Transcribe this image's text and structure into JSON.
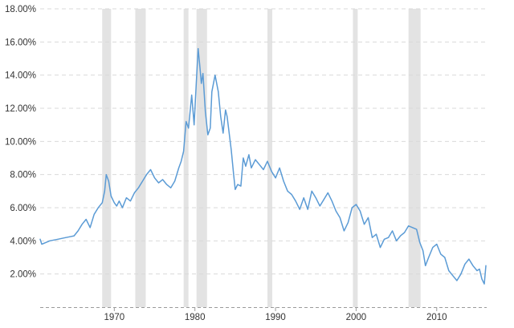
{
  "chart_data": {
    "type": "line",
    "title": "",
    "xlabel": "",
    "ylabel": "",
    "xlim": [
      1960.8,
      2016.2
    ],
    "ylim": [
      0,
      18
    ],
    "grid": true,
    "legend": "none",
    "line_color": "#5b9bd5",
    "shading_color": "#e3e3e3",
    "y_ticks": [
      {
        "value": 2,
        "label": "2.00%"
      },
      {
        "value": 4,
        "label": "4.00%"
      },
      {
        "value": 6,
        "label": "6.00%"
      },
      {
        "value": 8,
        "label": "8.00%"
      },
      {
        "value": 10,
        "label": "10.00%"
      },
      {
        "value": 12,
        "label": "12.00%"
      },
      {
        "value": 14,
        "label": "14.00%"
      },
      {
        "value": 16,
        "label": "16.00%"
      },
      {
        "value": 18,
        "label": "18.00%"
      }
    ],
    "x_ticks": [
      {
        "value": 1970,
        "label": "1970"
      },
      {
        "value": 1980,
        "label": "1980"
      },
      {
        "value": 1990,
        "label": "1990"
      },
      {
        "value": 2000,
        "label": "2000"
      },
      {
        "value": 2010,
        "label": "2010"
      }
    ],
    "shaded_periods": [
      [
        1968.5,
        1969.6
      ],
      [
        1972.6,
        1973.9
      ],
      [
        1978.6,
        1979.2
      ],
      [
        1980.2,
        1981.5
      ],
      [
        1989.0,
        1989.6
      ],
      [
        1999.6,
        2000.2
      ],
      [
        2006.5,
        2008.0
      ]
    ],
    "series": [
      {
        "x": [
          1960.8,
          1961.0,
          1961.5,
          1962.0,
          1963.0,
          1964.0,
          1964.5,
          1965.0,
          1965.5,
          1966.0,
          1966.5,
          1967.0,
          1967.5,
          1968.0,
          1968.5,
          1968.8,
          1969.0,
          1969.3,
          1969.6,
          1970.0,
          1970.3,
          1970.6,
          1971.0,
          1971.5,
          1972.0,
          1972.5,
          1973.0,
          1973.5,
          1974.0,
          1974.5,
          1975.0,
          1975.5,
          1976.0,
          1976.5,
          1977.0,
          1977.5,
          1978.0,
          1978.3,
          1978.6,
          1978.9,
          1979.2,
          1979.6,
          1979.9,
          1980.2,
          1980.4,
          1980.6,
          1980.8,
          1981.0,
          1981.3,
          1981.6,
          1981.9,
          1982.1,
          1982.5,
          1982.9,
          1983.2,
          1983.5,
          1983.8,
          1984.0,
          1984.5,
          1984.8,
          1985.0,
          1985.3,
          1985.7,
          1986.0,
          1986.3,
          1986.7,
          1987.0,
          1987.5,
          1988.0,
          1988.5,
          1989.0,
          1989.5,
          1990.0,
          1990.5,
          1991.0,
          1991.5,
          1992.0,
          1992.5,
          1993.0,
          1993.5,
          1994.0,
          1994.5,
          1995.0,
          1995.5,
          1996.0,
          1996.5,
          1997.0,
          1997.5,
          1998.0,
          1998.5,
          1999.0,
          1999.5,
          2000.0,
          2000.5,
          2001.0,
          2001.5,
          2002.0,
          2002.5,
          2003.0,
          2003.5,
          2004.0,
          2004.5,
          2005.0,
          2005.5,
          2006.0,
          2006.5,
          2007.0,
          2007.5,
          2007.9,
          2008.3,
          2008.6,
          2009.0,
          2009.5,
          2010.0,
          2010.5,
          2011.0,
          2011.5,
          2012.0,
          2012.5,
          2013.0,
          2013.5,
          2014.0,
          2014.5,
          2015.0,
          2015.3,
          2015.6,
          2015.9,
          2016.1
        ],
        "y": [
          4.1,
          3.8,
          3.9,
          4.0,
          4.1,
          4.2,
          4.25,
          4.3,
          4.6,
          5.0,
          5.3,
          4.8,
          5.6,
          6.0,
          6.3,
          7.0,
          8.0,
          7.6,
          6.7,
          6.3,
          6.1,
          6.4,
          6.0,
          6.6,
          6.4,
          6.9,
          7.2,
          7.6,
          8.0,
          8.3,
          7.8,
          7.5,
          7.7,
          7.4,
          7.2,
          7.6,
          8.4,
          8.8,
          9.4,
          11.2,
          10.8,
          12.8,
          11.0,
          13.8,
          15.6,
          14.6,
          13.5,
          14.1,
          11.8,
          10.4,
          10.8,
          13.0,
          14.0,
          13.0,
          11.5,
          10.5,
          11.9,
          11.5,
          9.5,
          8.0,
          7.1,
          7.4,
          7.3,
          9.0,
          8.5,
          9.2,
          8.4,
          8.9,
          8.6,
          8.3,
          8.8,
          8.2,
          7.8,
          8.4,
          7.6,
          7.0,
          6.8,
          6.4,
          5.9,
          6.6,
          5.9,
          7.0,
          6.6,
          6.1,
          6.5,
          6.9,
          6.4,
          5.8,
          5.4,
          4.6,
          5.1,
          6.0,
          6.2,
          5.8,
          5.0,
          5.4,
          4.2,
          4.4,
          3.6,
          4.1,
          4.2,
          4.6,
          4.0,
          4.3,
          4.5,
          4.9,
          4.8,
          4.7,
          3.9,
          3.4,
          2.5,
          3.0,
          3.6,
          3.8,
          3.2,
          3.0,
          2.2,
          1.9,
          1.6,
          2.0,
          2.6,
          2.9,
          2.5,
          2.2,
          2.3,
          1.7,
          1.4,
          2.5
        ]
      }
    ]
  }
}
